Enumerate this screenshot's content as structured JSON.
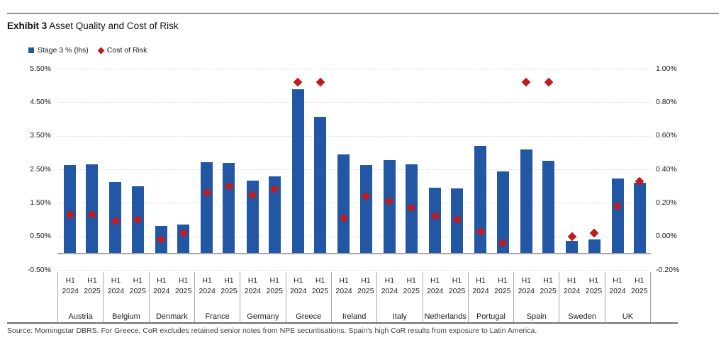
{
  "title": {
    "prefix": "Exhibit 3",
    "rest": " Asset Quality and Cost of Risk"
  },
  "legend": {
    "stage3_label": "Stage 3 % (lhs)",
    "cor_label": "Cost of Risk"
  },
  "source_note": "Source: Morningstar DBRS. For Greece, CoR excludes retained senior notes from NPE securitisations. Spain's high CoR results from exposure to Latin America.",
  "colors": {
    "bar": "#2157A5",
    "diamond": "#C11A1F",
    "gridline": "#D9D9D9",
    "baseline": "#A6A6A6",
    "separator": "#A8A8A8",
    "rule": "#909090",
    "text": "#1A1A1A"
  },
  "chart_data": {
    "type": "bar",
    "title": "Exhibit 3 Asset Quality and Cost of Risk",
    "grid": true,
    "legend_position": "top-left",
    "categories": [
      "Austria",
      "Belgium",
      "Denmark",
      "France",
      "Germany",
      "Greece",
      "Ireland",
      "Italy",
      "Netherlands",
      "Portugal",
      "Spain",
      "Sweden",
      "UK"
    ],
    "periods": [
      "H1 2024",
      "H1 2025"
    ],
    "period_line1": "H1",
    "period_years": [
      "2024",
      "2025"
    ],
    "series": [
      {
        "name": "Stage 3 % (lhs)",
        "type": "bar",
        "axis": "left",
        "values_h1_2024": [
          2.62,
          2.12,
          0.81,
          2.71,
          2.16,
          4.88,
          2.94,
          2.77,
          1.95,
          3.2,
          3.09,
          0.37,
          2.23
        ],
        "values_h1_2025": [
          2.64,
          2.0,
          0.85,
          2.69,
          2.29,
          4.06,
          2.63,
          2.65,
          1.93,
          2.44,
          2.75,
          0.41,
          2.1
        ]
      },
      {
        "name": "Cost of Risk",
        "type": "scatter",
        "axis": "right",
        "values_h1_2024": [
          0.13,
          0.09,
          -0.02,
          0.26,
          0.25,
          0.92,
          0.11,
          0.21,
          0.12,
          0.03,
          0.92,
          0.0,
          0.18
        ],
        "values_h1_2025": [
          0.13,
          0.1,
          0.02,
          0.3,
          0.28,
          0.92,
          0.24,
          0.17,
          0.1,
          -0.04,
          0.92,
          0.02,
          0.33
        ]
      }
    ],
    "left_axis": {
      "min": -0.5,
      "max": 5.5,
      "ticks": [
        "5.50%",
        "4.50%",
        "3.50%",
        "2.50%",
        "1.50%",
        "0.50%",
        "-0.50%"
      ]
    },
    "right_axis": {
      "min": -0.2,
      "max": 1.0,
      "ticks": [
        "1.00%",
        "0.80%",
        "0.60%",
        "0.40%",
        "0.20%",
        "0.00%",
        "-0.20%"
      ]
    }
  }
}
